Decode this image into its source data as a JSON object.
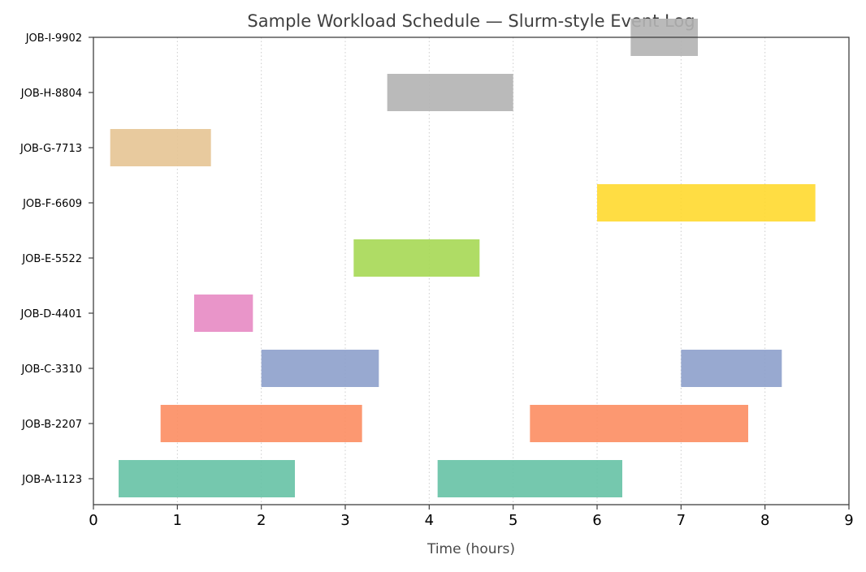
{
  "chart_data": {
    "type": "gantt",
    "title": "Sample Workload Schedule — Slurm-style Event Log",
    "xlabel": "Time (hours)",
    "ylabel": "",
    "xlim": [
      0,
      9
    ],
    "xticks": [
      0,
      1,
      2,
      3,
      4,
      5,
      6,
      7,
      8,
      9
    ],
    "grid": "x-dotted",
    "legend": "none",
    "categories": [
      "JOB-A-1123",
      "JOB-B-2207",
      "JOB-C-3310",
      "JOB-D-4401",
      "JOB-E-5522",
      "JOB-F-6609",
      "JOB-G-7713",
      "JOB-H-8804",
      "JOB-I-9902"
    ],
    "colors": {
      "JOB-A-1123": "#66c2a5",
      "JOB-B-2207": "#fc8d62",
      "JOB-C-3310": "#8da0cb",
      "JOB-D-4401": "#e78ac3",
      "JOB-E-5522": "#a6d854",
      "JOB-F-6609": "#ffd92f",
      "JOB-G-7713": "#e5c494",
      "JOB-H-8804": "#b3b3b3",
      "JOB-I-9902": "#b3b3b3"
    },
    "intervals": [
      {
        "job": "JOB-A-1123",
        "start": 0.3,
        "end": 2.4
      },
      {
        "job": "JOB-A-1123",
        "start": 4.1,
        "end": 6.3
      },
      {
        "job": "JOB-B-2207",
        "start": 0.8,
        "end": 3.2
      },
      {
        "job": "JOB-B-2207",
        "start": 5.2,
        "end": 7.8
      },
      {
        "job": "JOB-C-3310",
        "start": 2.0,
        "end": 3.4
      },
      {
        "job": "JOB-C-3310",
        "start": 7.0,
        "end": 8.2
      },
      {
        "job": "JOB-D-4401",
        "start": 1.2,
        "end": 1.9
      },
      {
        "job": "JOB-E-5522",
        "start": 3.1,
        "end": 4.6
      },
      {
        "job": "JOB-F-6609",
        "start": 6.0,
        "end": 8.6
      },
      {
        "job": "JOB-G-7713",
        "start": 0.2,
        "end": 1.4
      },
      {
        "job": "JOB-H-8804",
        "start": 3.5,
        "end": 5.0
      },
      {
        "job": "JOB-I-9902",
        "start": 6.4,
        "end": 7.2
      }
    ]
  }
}
